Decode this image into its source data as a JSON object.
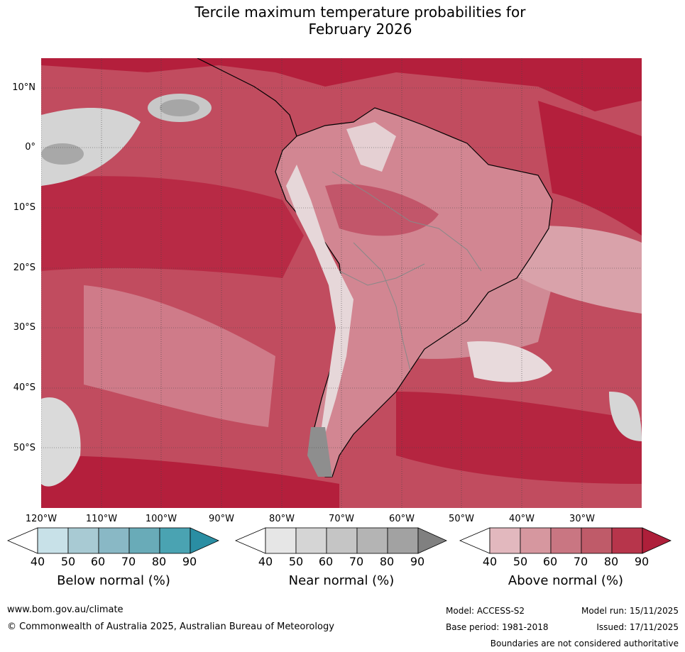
{
  "title_line1": "Tercile maximum temperature probabilities for",
  "title_line2": "February 2026",
  "lat_labels": [
    "10°N",
    "0°",
    "10°S",
    "20°S",
    "30°S",
    "40°S",
    "50°S"
  ],
  "lon_labels": [
    "120°W",
    "110°W",
    "100°W",
    "90°W",
    "80°W",
    "70°W",
    "60°W",
    "50°W",
    "40°W",
    "30°W"
  ],
  "legends": [
    {
      "name": "Below normal (%)",
      "ticks": [
        "40",
        "50",
        "60",
        "70",
        "80",
        "90"
      ],
      "colors": [
        "#ffffff",
        "#c8e1e8",
        "#a8cad3",
        "#89b8c5",
        "#69abb8",
        "#4aa3b2",
        "#2a8ea3"
      ]
    },
    {
      "name": "Near normal (%)",
      "ticks": [
        "40",
        "50",
        "60",
        "70",
        "80",
        "90"
      ],
      "colors": [
        "#ffffff",
        "#e6e6e6",
        "#d5d5d5",
        "#c5c5c5",
        "#b4b4b4",
        "#a2a2a2",
        "#808080"
      ]
    },
    {
      "name": "Above normal (%)",
      "ticks": [
        "40",
        "50",
        "60",
        "70",
        "80",
        "90"
      ],
      "colors": [
        "#ffffff",
        "#e2b8be",
        "#d6979f",
        "#c97682",
        "#bf5b69",
        "#b7354b",
        "#ae1f3a"
      ]
    }
  ],
  "footer": {
    "website": "www.bom.gov.au/climate",
    "copyright": "© Commonwealth of Australia 2025, Australian Bureau of Meteorology",
    "model": "Model: ACCESS-S2",
    "model_run": "Model run: 15/11/2025",
    "base_period": "Base period: 1981-2018",
    "issued": "Issued: 17/11/2025",
    "disclaimer": "Boundaries are not considered authoritative"
  }
}
